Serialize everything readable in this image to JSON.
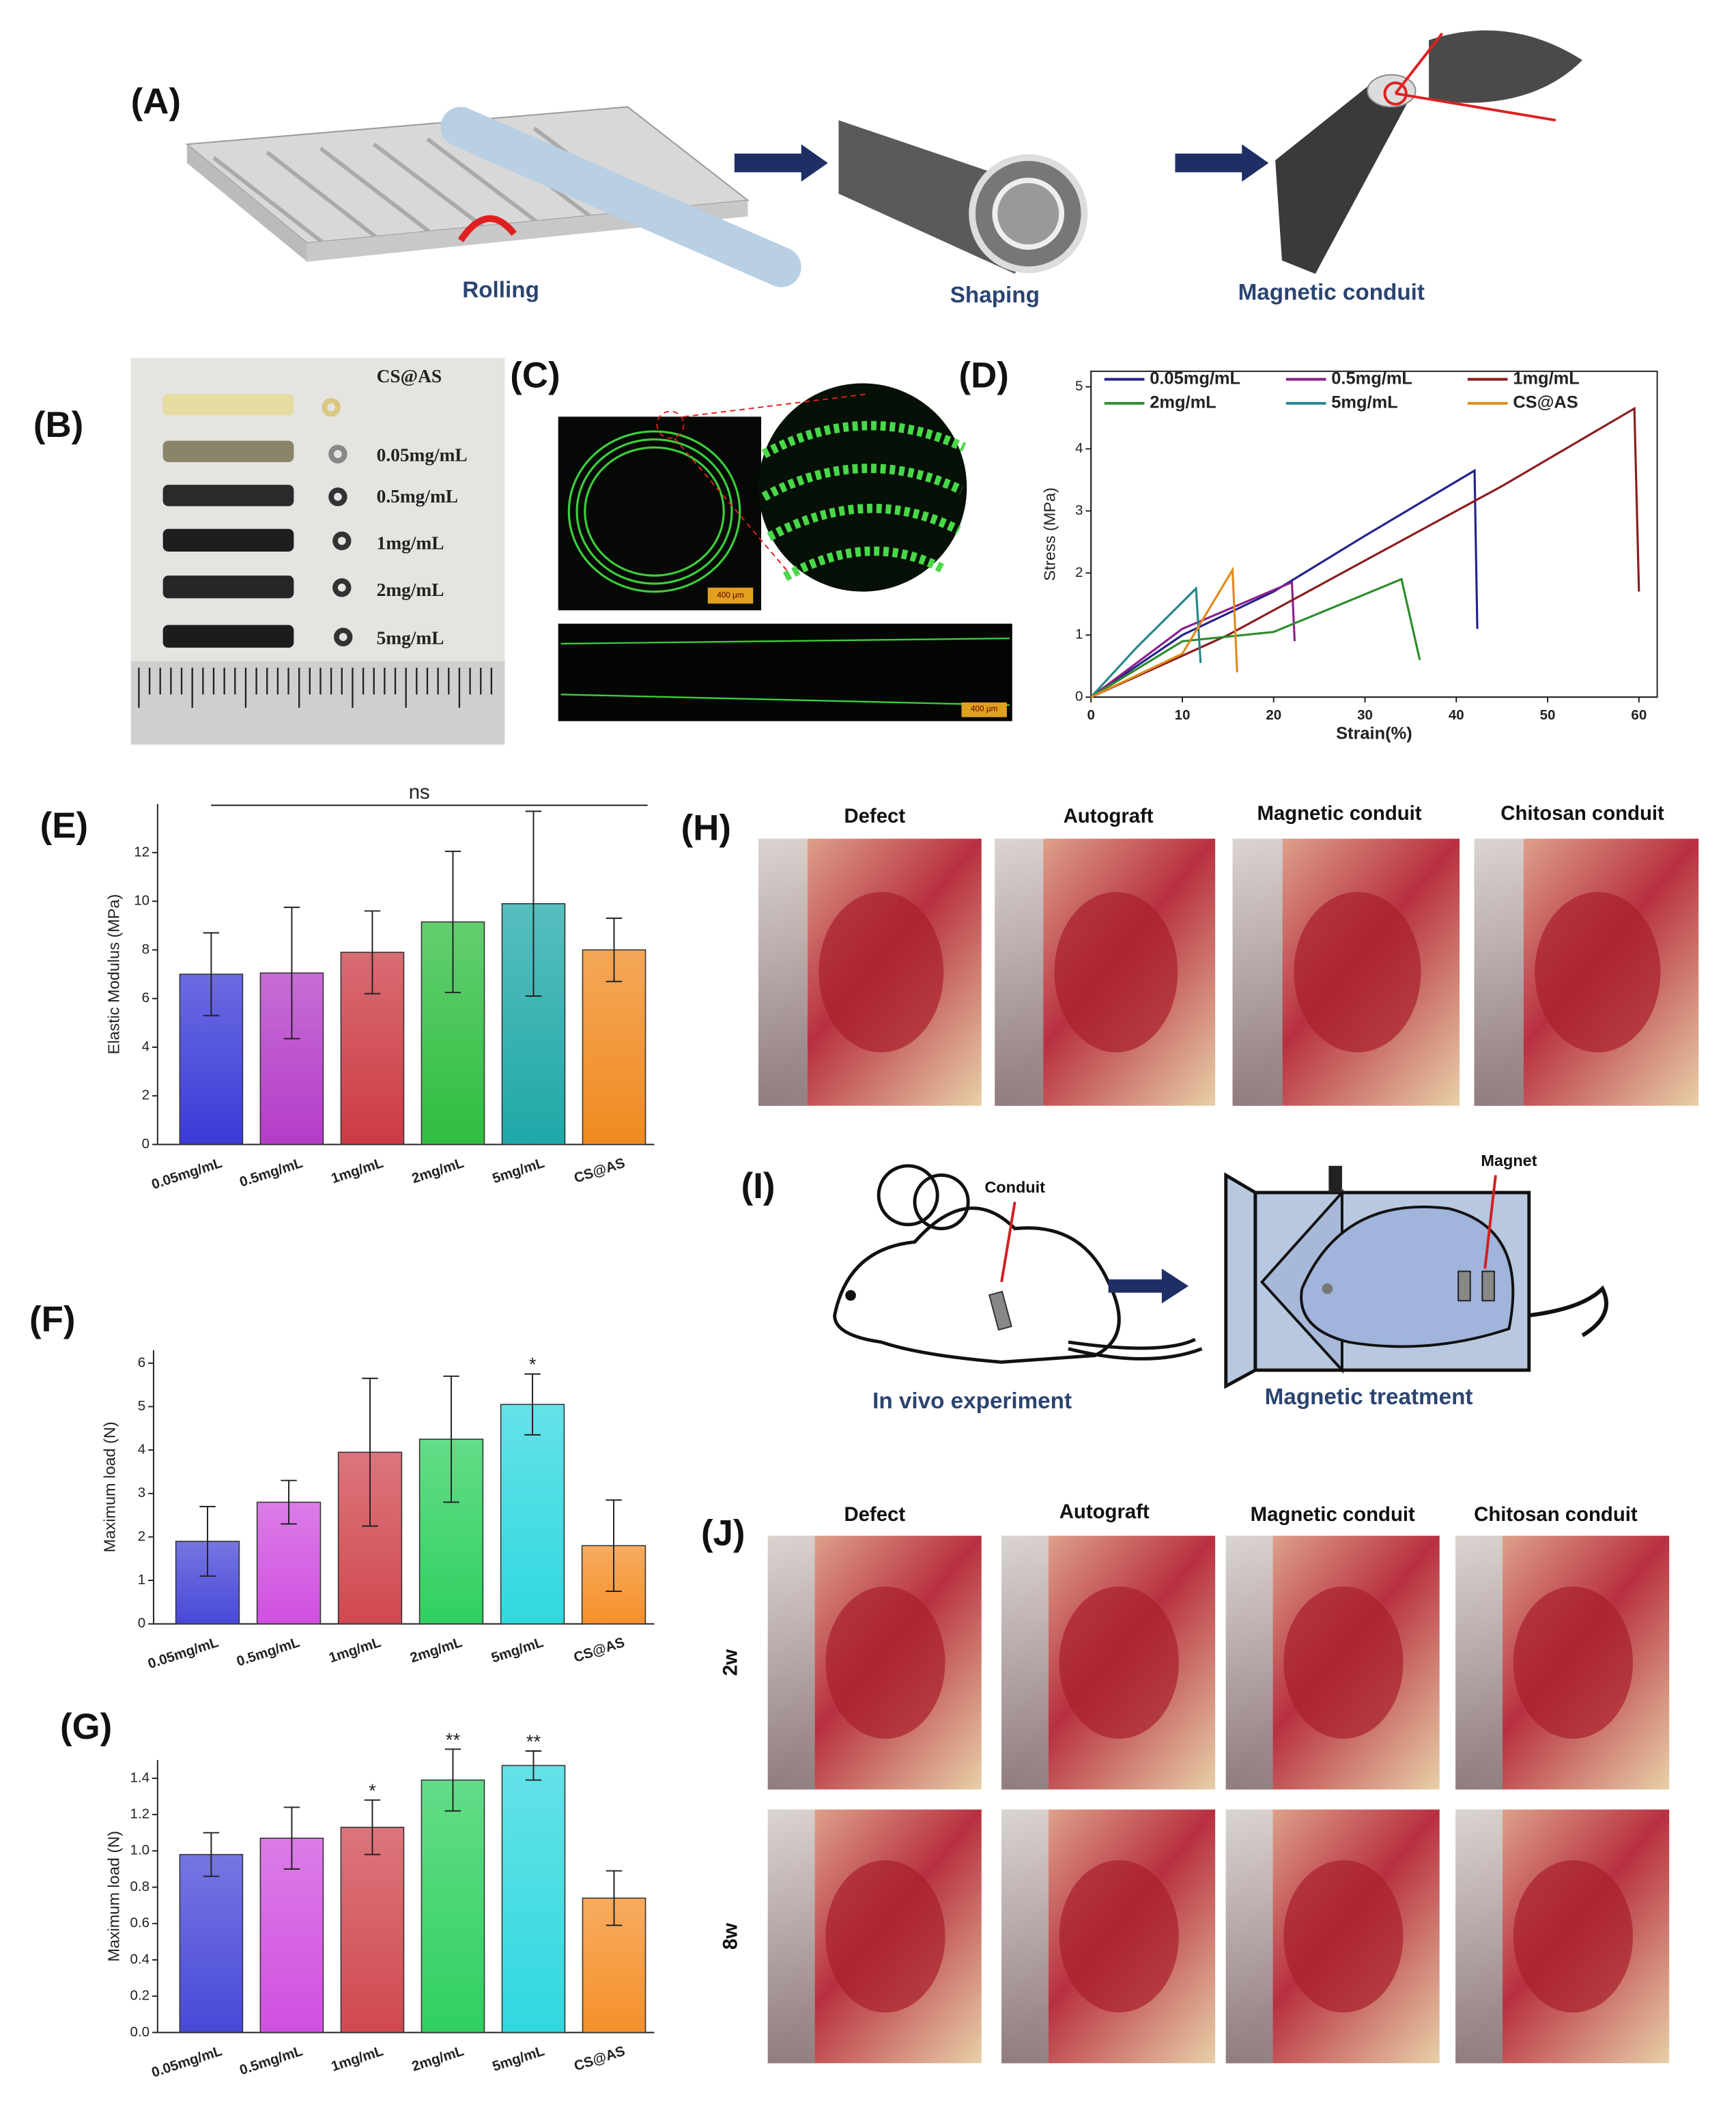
{
  "panels": {
    "A": {
      "label": "(A)",
      "steps": [
        "Rolling",
        "Shaping",
        "Magnetic conduit"
      ]
    },
    "B": {
      "label": "(B)",
      "samples": [
        "CS@AS",
        "0.05mg/mL",
        "0.5mg/mL",
        "1mg/mL",
        "2mg/mL",
        "5mg/mL"
      ]
    },
    "C": {
      "label": "(C)",
      "scale_bar": "400 μm"
    },
    "D": {
      "label": "(D)"
    },
    "E": {
      "label": "(E)"
    },
    "F": {
      "label": "(F)"
    },
    "G": {
      "label": "(G)"
    },
    "H": {
      "label": "(H)",
      "columns": [
        "Defect",
        "Autograft",
        "Magnetic conduit",
        "Chitosan conduit"
      ]
    },
    "I": {
      "label": "(I)",
      "callouts": [
        "Conduit",
        "Magnet"
      ],
      "steps": [
        "In vivo experiment",
        "Magnetic treatment"
      ]
    },
    "J": {
      "label": "(J)",
      "columns": [
        "Defect",
        "Autograft",
        "Magnetic conduit",
        "Chitosan conduit"
      ],
      "rows": [
        "2w",
        "8w"
      ]
    }
  },
  "chart_data": [
    {
      "type": "line",
      "x_label": "Strain(%)",
      "y_label": "Stress (MPa)",
      "xlim": [
        0,
        62
      ],
      "xticks": [
        0,
        10,
        20,
        30,
        40,
        50,
        60
      ],
      "ylim": [
        0,
        5.25
      ],
      "yticks": [
        0,
        1,
        2,
        3,
        4,
        5
      ],
      "series": [
        {
          "name": "0.05mg/mL",
          "color": "#23238a",
          "x": [
            0,
            10,
            20,
            30,
            42,
            42.3
          ],
          "values": [
            0,
            1,
            1.7,
            2.6,
            3.65,
            1.1
          ]
        },
        {
          "name": "0.5mg/mL",
          "color": "#8a1f8a",
          "x": [
            0,
            10,
            22,
            22.3
          ],
          "values": [
            0,
            1.1,
            1.85,
            0.9
          ]
        },
        {
          "name": "1mg/mL",
          "color": "#8a1c1c",
          "x": [
            0,
            15,
            30,
            45,
            59.5,
            60
          ],
          "values": [
            0,
            1,
            2.2,
            3.4,
            4.65,
            1.7
          ]
        },
        {
          "name": "2mg/mL",
          "color": "#2e8b2e",
          "x": [
            0,
            10,
            20,
            34,
            36
          ],
          "values": [
            0,
            0.9,
            1.05,
            1.9,
            0.6
          ]
        },
        {
          "name": "5mg/mL",
          "color": "#23868a",
          "x": [
            0,
            5,
            11.5,
            12
          ],
          "values": [
            0,
            0.8,
            1.75,
            0.55
          ]
        },
        {
          "name": "CS@AS",
          "color": "#e08a1a",
          "x": [
            0,
            10,
            15.5,
            16
          ],
          "values": [
            0,
            0.7,
            2.05,
            0.4
          ]
        }
      ]
    },
    {
      "type": "bar",
      "y_label": "Elastic Modulus  (MPa)",
      "annotation": "ns",
      "categories": [
        "0.05mg/mL",
        "0.5mg/mL",
        "1mg/mL",
        "2mg/mL",
        "5mg/mL",
        "CS@AS"
      ],
      "values": [
        7.0,
        7.05,
        7.9,
        9.15,
        9.9,
        8.0
      ],
      "errors": [
        1.7,
        2.7,
        1.7,
        2.9,
        3.8,
        1.3
      ],
      "colors": [
        "#3a3ad8",
        "#b43cc8",
        "#cc3a44",
        "#2fbe40",
        "#1fa8a8",
        "#f08a20"
      ],
      "ylim": [
        0,
        14
      ],
      "yticks": [
        0,
        2,
        4,
        6,
        8,
        10,
        12
      ]
    },
    {
      "type": "bar",
      "y_label": "Maximum load (N)",
      "categories": [
        "0.05mg/mL",
        "0.5mg/mL",
        "1mg/mL",
        "2mg/mL",
        "5mg/mL",
        "CS@AS"
      ],
      "values": [
        1.9,
        2.8,
        3.95,
        4.25,
        5.05,
        1.8
      ],
      "errors": [
        0.8,
        0.5,
        1.7,
        1.45,
        0.7,
        1.05
      ],
      "significance": [
        null,
        null,
        null,
        null,
        "*",
        null
      ],
      "colors": [
        "#4848d8",
        "#d050e0",
        "#d04850",
        "#30d060",
        "#30d8e0",
        "#f5902a"
      ],
      "ylim": [
        0,
        6.3
      ],
      "yticks": [
        0,
        1,
        2,
        3,
        4,
        5,
        6
      ]
    },
    {
      "type": "bar",
      "y_label": "Maximum load (N)",
      "categories": [
        "0.05mg/mL",
        "0.5mg/mL",
        "1mg/mL",
        "2mg/mL",
        "5mg/mL",
        "CS@AS"
      ],
      "values": [
        0.98,
        1.07,
        1.13,
        1.39,
        1.47,
        0.74
      ],
      "errors": [
        0.12,
        0.17,
        0.15,
        0.17,
        0.08,
        0.15
      ],
      "significance": [
        null,
        null,
        "*",
        "**",
        "**",
        null
      ],
      "colors": [
        "#4848d8",
        "#d050e0",
        "#d04850",
        "#30d060",
        "#30d8e0",
        "#f5902a"
      ],
      "ylim": [
        0,
        1.5
      ],
      "yticks": [
        {
          "value": 0,
          "label": "0.0"
        },
        {
          "value": 0.2,
          "label": "0.2"
        },
        {
          "value": 0.4,
          "label": "0.4"
        },
        {
          "value": 0.6,
          "label": "0.6"
        },
        {
          "value": 0.8,
          "label": "0.8"
        },
        {
          "value": 1,
          "label": "1.0"
        },
        {
          "value": 1.2,
          "label": "1.2"
        },
        {
          "value": 1.4,
          "label": "1.4"
        }
      ]
    }
  ]
}
